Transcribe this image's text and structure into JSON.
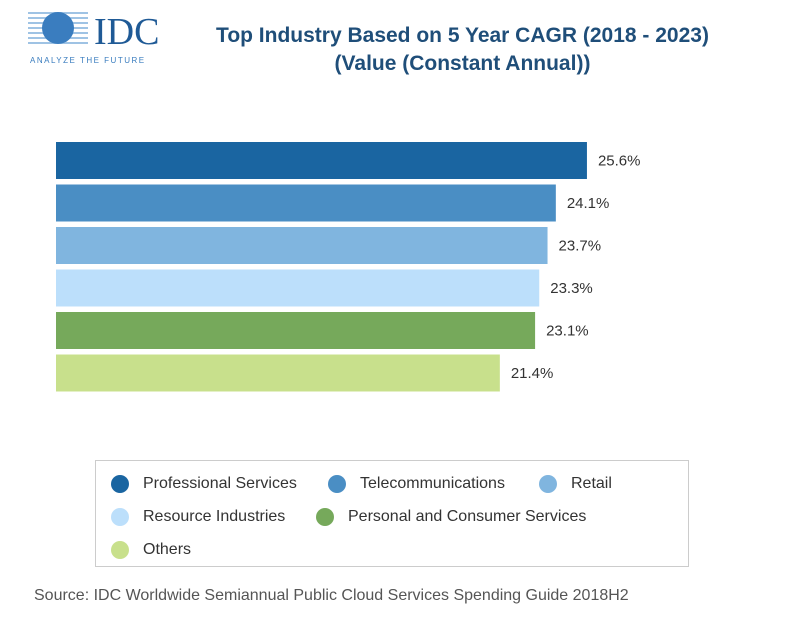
{
  "logo": {
    "text": "IDC",
    "tagline": "ANALYZE THE FUTURE"
  },
  "chart_data": {
    "type": "bar",
    "orientation": "horizontal",
    "title": "Top Industry Based on 5 Year CAGR (2018 - 2023)",
    "subtitle": "(Value (Constant Annual))",
    "categories": [
      "Professional Services",
      "Telecommunications",
      "Retail",
      "Resource Industries",
      "Personal and Consumer Services",
      "Others"
    ],
    "values": [
      25.6,
      24.1,
      23.7,
      23.3,
      23.1,
      21.4
    ],
    "data_labels": [
      "25.6%",
      "24.1%",
      "23.7%",
      "23.3%",
      "23.1%",
      "21.4%"
    ],
    "colors": [
      "#1a65a1",
      "#4a8ec4",
      "#80b5df",
      "#bcdffb",
      "#76a95b",
      "#c8e08c"
    ],
    "xlim": [
      0,
      26
    ],
    "grid": false,
    "legend": "bottom"
  },
  "source": "Source: IDC Worldwide Semiannual Public Cloud Services Spending Guide 2018H2"
}
